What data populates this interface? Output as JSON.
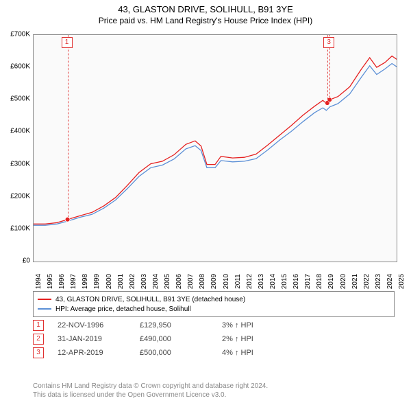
{
  "title": "43, GLASTON DRIVE, SOLIHULL, B91 3YE",
  "subtitle": "Price paid vs. HM Land Registry's House Price Index (HPI)",
  "chart": {
    "type": "line",
    "background_color": "#fafafa",
    "border_color": "#888888",
    "x_start_year": 1994,
    "x_end_year": 2025,
    "y_min": 0,
    "y_max": 700000,
    "y_tick_step": 100000,
    "y_tick_labels": [
      "£0",
      "£100K",
      "£200K",
      "£300K",
      "£400K",
      "£500K",
      "£600K",
      "£700K"
    ],
    "x_tick_labels": [
      "1994",
      "1995",
      "1996",
      "1997",
      "1998",
      "1999",
      "2000",
      "2001",
      "2002",
      "2003",
      "2004",
      "2005",
      "2006",
      "2007",
      "2008",
      "2009",
      "2010",
      "2011",
      "2012",
      "2013",
      "2014",
      "2015",
      "2016",
      "2017",
      "2018",
      "2019",
      "2020",
      "2021",
      "2022",
      "2023",
      "2024",
      "2025"
    ],
    "series": [
      {
        "name": "43, GLASTON DRIVE, SOLIHULL, B91 3YE (detached house)",
        "color": "#e52020",
        "line_width": 1.3,
        "data": [
          [
            1994.0,
            116000
          ],
          [
            1995.0,
            116000
          ],
          [
            1996.0,
            120000
          ],
          [
            1996.9,
            130000
          ],
          [
            1998.0,
            142000
          ],
          [
            1999.0,
            152000
          ],
          [
            2000.0,
            172000
          ],
          [
            2001.0,
            198000
          ],
          [
            2002.0,
            235000
          ],
          [
            2003.0,
            275000
          ],
          [
            2004.0,
            302000
          ],
          [
            2005.0,
            310000
          ],
          [
            2006.0,
            330000
          ],
          [
            2007.0,
            362000
          ],
          [
            2007.8,
            373000
          ],
          [
            2008.3,
            357000
          ],
          [
            2008.8,
            300000
          ],
          [
            2009.5,
            300000
          ],
          [
            2010.0,
            325000
          ],
          [
            2011.0,
            320000
          ],
          [
            2012.0,
            322000
          ],
          [
            2013.0,
            332000
          ],
          [
            2014.0,
            360000
          ],
          [
            2015.0,
            390000
          ],
          [
            2016.0,
            420000
          ],
          [
            2017.0,
            452000
          ],
          [
            2018.0,
            480000
          ],
          [
            2018.7,
            498000
          ],
          [
            2019.0,
            488000
          ],
          [
            2019.3,
            500000
          ],
          [
            2020.0,
            510000
          ],
          [
            2021.0,
            540000
          ],
          [
            2022.0,
            595000
          ],
          [
            2022.7,
            630000
          ],
          [
            2023.3,
            600000
          ],
          [
            2024.0,
            615000
          ],
          [
            2024.6,
            635000
          ],
          [
            2025.0,
            625000
          ]
        ]
      },
      {
        "name": "HPI: Average price, detached house, Solihull",
        "color": "#5b8fd6",
        "line_width": 1.3,
        "data": [
          [
            1994.0,
            112000
          ],
          [
            1995.0,
            112000
          ],
          [
            1996.0,
            116000
          ],
          [
            1996.9,
            125000
          ],
          [
            1998.0,
            137000
          ],
          [
            1999.0,
            146000
          ],
          [
            2000.0,
            165000
          ],
          [
            2001.0,
            190000
          ],
          [
            2002.0,
            225000
          ],
          [
            2003.0,
            263000
          ],
          [
            2004.0,
            290000
          ],
          [
            2005.0,
            298000
          ],
          [
            2006.0,
            317000
          ],
          [
            2007.0,
            348000
          ],
          [
            2007.8,
            358000
          ],
          [
            2008.3,
            343000
          ],
          [
            2008.8,
            290000
          ],
          [
            2009.5,
            290000
          ],
          [
            2010.0,
            312000
          ],
          [
            2011.0,
            308000
          ],
          [
            2012.0,
            310000
          ],
          [
            2013.0,
            318000
          ],
          [
            2014.0,
            345000
          ],
          [
            2015.0,
            375000
          ],
          [
            2016.0,
            402000
          ],
          [
            2017.0,
            432000
          ],
          [
            2018.0,
            460000
          ],
          [
            2018.7,
            475000
          ],
          [
            2019.0,
            467000
          ],
          [
            2019.3,
            478000
          ],
          [
            2020.0,
            488000
          ],
          [
            2021.0,
            518000
          ],
          [
            2022.0,
            570000
          ],
          [
            2022.7,
            605000
          ],
          [
            2023.3,
            578000
          ],
          [
            2024.0,
            595000
          ],
          [
            2024.6,
            612000
          ],
          [
            2025.0,
            602000
          ]
        ]
      }
    ],
    "markers": [
      {
        "num": "1",
        "year": 1996.9,
        "price": 129950
      },
      {
        "num": "2",
        "year": 2019.08,
        "price": 490000
      },
      {
        "num": "3",
        "year": 2019.28,
        "price": 500000
      }
    ]
  },
  "legend": {
    "series1_label": "43, GLASTON DRIVE, SOLIHULL, B91 3YE (detached house)",
    "series1_color": "#e52020",
    "series2_label": "HPI: Average price, detached house, Solihull",
    "series2_color": "#5b8fd6"
  },
  "events": [
    {
      "num": "1",
      "date": "22-NOV-1996",
      "price": "£129,950",
      "hpi": "3% ↑ HPI"
    },
    {
      "num": "2",
      "date": "31-JAN-2019",
      "price": "£490,000",
      "hpi": "2% ↑ HPI"
    },
    {
      "num": "3",
      "date": "12-APR-2019",
      "price": "£500,000",
      "hpi": "4% ↑ HPI"
    }
  ],
  "attribution": {
    "line1": "Contains HM Land Registry data © Crown copyright and database right 2024.",
    "line2": "This data is licensed under the Open Government Licence v3.0."
  }
}
